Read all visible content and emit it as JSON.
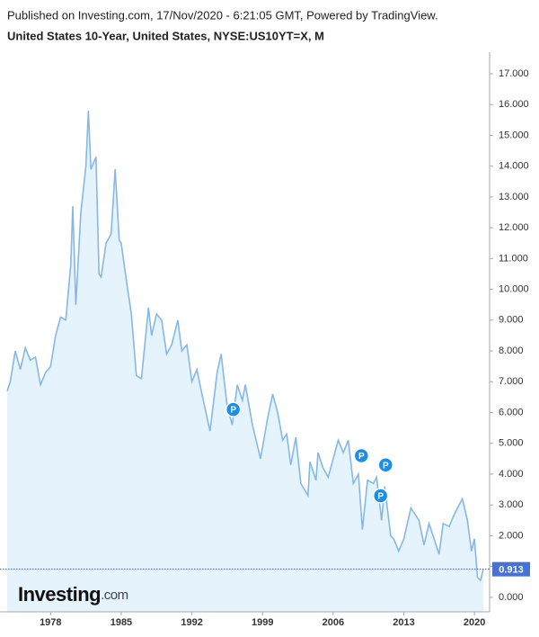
{
  "chart_data": {
    "type": "area",
    "title": "United States 10-Year, United States, NYSE:US10YT=X, M",
    "subtitle": "Published on Investing.com, 17/Nov/2020 - 6:21:05 GMT, Powered by TradingView.",
    "logo": "Investing",
    "logo_suffix": ".com",
    "line_color": "#86b8e6",
    "fill_color": "#e4f3fc",
    "x": [
      1973.7,
      1974.0,
      1974.5,
      1975.0,
      1975.5,
      1976.0,
      1976.5,
      1977.0,
      1977.5,
      1978.0,
      1978.5,
      1979.0,
      1979.5,
      1980.0,
      1980.2,
      1980.5,
      1981.0,
      1981.5,
      1981.75,
      1982.0,
      1982.5,
      1982.8,
      1983.0,
      1983.5,
      1984.0,
      1984.4,
      1984.8,
      1985.0,
      1985.5,
      1986.0,
      1986.5,
      1987.0,
      1987.7,
      1988.0,
      1988.5,
      1989.0,
      1989.5,
      1990.0,
      1990.6,
      1991.0,
      1991.5,
      1992.0,
      1992.5,
      1993.0,
      1993.8,
      1994.5,
      1994.9,
      1995.5,
      1996.0,
      1996.5,
      1997.0,
      1997.3,
      1998.0,
      1998.8,
      1999.5,
      2000.0,
      2000.5,
      2001.0,
      2001.4,
      2001.8,
      2002.3,
      2002.8,
      2003.5,
      2003.7,
      2004.3,
      2004.5,
      2005.0,
      2005.5,
      2006.0,
      2006.5,
      2007.0,
      2007.5,
      2008.0,
      2008.5,
      2008.9,
      2009.4,
      2010.0,
      2010.3,
      2010.8,
      2011.1,
      2011.7,
      2012.0,
      2012.5,
      2013.0,
      2013.7,
      2014.5,
      2015.0,
      2015.5,
      2016.5,
      2016.9,
      2017.5,
      2018.0,
      2018.8,
      2019.3,
      2019.7,
      2020.0,
      2020.3,
      2020.6,
      2020.87
    ],
    "values": [
      6.7,
      7.0,
      8.0,
      7.4,
      8.1,
      7.7,
      7.8,
      6.9,
      7.3,
      7.5,
      8.5,
      9.1,
      9.0,
      10.8,
      12.7,
      9.5,
      12.5,
      14.0,
      15.8,
      13.9,
      14.3,
      10.5,
      10.4,
      11.5,
      11.8,
      13.9,
      11.6,
      11.5,
      10.3,
      9.2,
      7.2,
      7.1,
      9.4,
      8.5,
      9.2,
      9.0,
      7.9,
      8.2,
      9.0,
      8.0,
      8.2,
      7.0,
      7.4,
      6.6,
      5.4,
      7.3,
      7.9,
      6.2,
      5.6,
      6.9,
      6.4,
      6.9,
      5.6,
      4.5,
      5.8,
      6.6,
      6.0,
      5.1,
      5.3,
      4.3,
      5.2,
      3.7,
      3.3,
      4.4,
      3.8,
      4.7,
      4.2,
      3.9,
      4.5,
      5.1,
      4.7,
      5.1,
      3.7,
      4.0,
      2.2,
      3.8,
      3.7,
      3.9,
      2.5,
      3.6,
      2.0,
      1.9,
      1.5,
      1.9,
      2.9,
      2.5,
      1.7,
      2.4,
      1.4,
      2.4,
      2.3,
      2.7,
      3.2,
      2.5,
      1.5,
      1.9,
      0.65,
      0.55,
      0.913
    ],
    "last_value": 0.913,
    "markers": [
      {
        "label": "P",
        "x": 1996.1,
        "y": 6.1
      },
      {
        "label": "P",
        "x": 2008.8,
        "y": 4.6
      },
      {
        "label": "P",
        "x": 2011.2,
        "y": 4.3
      },
      {
        "label": "P",
        "x": 2010.7,
        "y": 3.3
      }
    ],
    "xlim": [
      1973.7,
      2021.5
    ],
    "xticks": [
      1978,
      1985,
      1992,
      1999,
      2006,
      2013,
      2020
    ],
    "ylim": [
      -0.47,
      17.7
    ],
    "yticks": [
      {
        "value": 0,
        "label": "0.000"
      },
      {
        "value": 1,
        "label": "1.000"
      },
      {
        "value": 2,
        "label": "2.000"
      },
      {
        "value": 3,
        "label": "3.000"
      },
      {
        "value": 4,
        "label": "4.000"
      },
      {
        "value": 5,
        "label": "5.000"
      },
      {
        "value": 6,
        "label": "6.000"
      },
      {
        "value": 7,
        "label": "7.000"
      },
      {
        "value": 8,
        "label": "8.000"
      },
      {
        "value": 9,
        "label": "9.000"
      },
      {
        "value": 10,
        "label": "10.000"
      },
      {
        "value": 11,
        "label": "11.000"
      },
      {
        "value": 12,
        "label": "12.000"
      },
      {
        "value": 13,
        "label": "13.000"
      },
      {
        "value": 14,
        "label": "14.000"
      },
      {
        "value": 15,
        "label": "15.000"
      },
      {
        "value": 16,
        "label": "16.000"
      },
      {
        "value": 17,
        "label": "17.000"
      }
    ]
  }
}
